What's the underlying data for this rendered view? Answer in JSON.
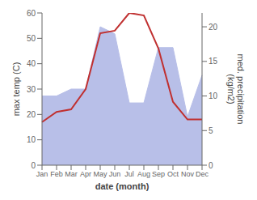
{
  "chart_data": {
    "type": "line",
    "categories": [
      "Jan",
      "Feb",
      "Mar",
      "Apr",
      "May",
      "Jun",
      "Jul",
      "Aug",
      "Sep",
      "Oct",
      "Nov",
      "Dec"
    ],
    "xlabel": "date (month)",
    "ylabel": "max temp (C)",
    "y2label": "med. precipitation\n(kg/m2)",
    "series": [
      {
        "type": "area",
        "axis": "y2",
        "color": "#b8bfe8",
        "values": [
          10,
          10,
          11,
          11,
          20,
          19,
          9,
          9,
          17,
          17,
          7,
          13
        ]
      },
      {
        "type": "line",
        "color": "#c03030",
        "values": [
          17,
          21,
          22,
          30,
          52,
          53,
          60,
          59,
          46,
          25,
          18,
          18
        ]
      }
    ],
    "ylim": [
      0,
      60
    ],
    "yticks": [
      0,
      10,
      20,
      30,
      40,
      50,
      60
    ],
    "y2lim": [
      0,
      22
    ],
    "y2ticks": [
      0,
      5,
      10,
      15,
      20
    ],
    "grid": false
  }
}
